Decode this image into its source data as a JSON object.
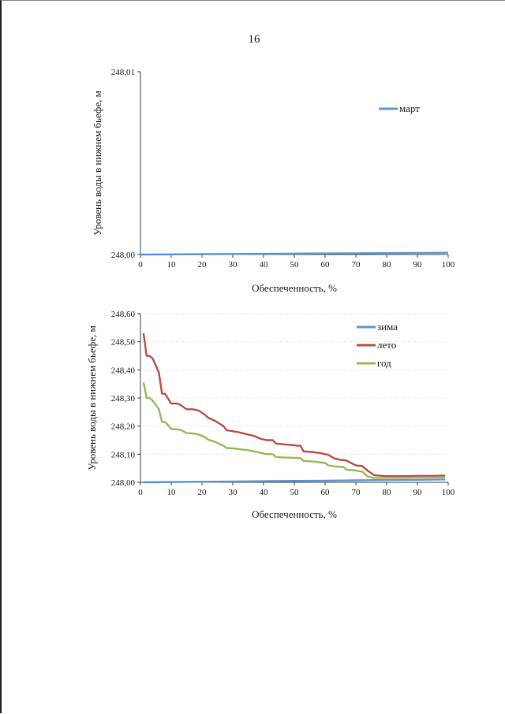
{
  "page": {
    "number": "16"
  },
  "chart_data": [
    {
      "type": "line",
      "title": "",
      "xlabel": "Обеспеченность, %",
      "ylabel": "Уровень воды в нижнем бьефе, м",
      "xlim": [
        0,
        100
      ],
      "ylim": [
        248.0,
        248.01
      ],
      "xticks": [
        0,
        10,
        20,
        30,
        40,
        50,
        60,
        70,
        80,
        90,
        100
      ],
      "yticks": [
        "248,00",
        "248,01"
      ],
      "yticks_values": [
        248.0,
        248.01
      ],
      "grid": false,
      "legend_position": "top-right",
      "series": [
        {
          "name": "март",
          "color": "#5b9bd5",
          "x": [
            0,
            10,
            20,
            30,
            40,
            50,
            60,
            70,
            80,
            90,
            100
          ],
          "values": [
            248.0,
            248.00001,
            248.00002,
            248.00003,
            248.00004,
            248.00005,
            248.00006,
            248.00007,
            248.00008,
            248.00009,
            248.0001
          ]
        }
      ]
    },
    {
      "type": "line",
      "title": "",
      "xlabel": "Обеспеченность, %",
      "ylabel": "Уровень воды в нижнем бьефе, м",
      "xlim": [
        0,
        100
      ],
      "ylim": [
        248.0,
        248.6
      ],
      "xticks": [
        0,
        10,
        20,
        30,
        40,
        50,
        60,
        70,
        80,
        90,
        100
      ],
      "yticks": [
        "248,00",
        "248,10",
        "248,20",
        "248,30",
        "248,40",
        "248,50",
        "248,60"
      ],
      "yticks_values": [
        248.0,
        248.1,
        248.2,
        248.3,
        248.4,
        248.5,
        248.6
      ],
      "grid": true,
      "legend_position": "top-right",
      "series": [
        {
          "name": "зима",
          "color": "#5b9bd5",
          "x": [
            1,
            10,
            20,
            30,
            40,
            50,
            60,
            70,
            80,
            90,
            99
          ],
          "values": [
            248.0,
            248.001,
            248.002,
            248.003,
            248.004,
            248.005,
            248.006,
            248.007,
            248.008,
            248.009,
            248.01
          ]
        },
        {
          "name": "лето",
          "color": "#c0504d",
          "x": [
            1,
            2,
            3,
            4,
            6,
            7,
            8,
            10,
            12,
            13,
            15,
            17,
            19,
            21,
            22,
            24,
            27,
            28,
            31,
            32,
            35,
            37,
            39,
            41,
            43,
            44,
            47,
            50,
            51,
            52,
            53,
            56,
            57,
            59,
            60,
            61,
            63,
            65,
            66,
            67,
            70,
            72,
            74,
            76,
            80,
            85,
            90,
            95,
            99
          ],
          "values": [
            248.53,
            248.45,
            248.45,
            248.44,
            248.39,
            248.315,
            248.315,
            248.28,
            248.28,
            248.275,
            248.26,
            248.26,
            248.255,
            248.24,
            248.23,
            248.22,
            248.2,
            248.185,
            248.18,
            248.178,
            248.17,
            248.165,
            248.155,
            248.15,
            248.15,
            248.138,
            248.135,
            248.132,
            248.13,
            248.13,
            248.11,
            248.108,
            248.106,
            248.103,
            248.1,
            248.098,
            248.085,
            248.08,
            248.079,
            248.077,
            248.06,
            248.058,
            248.04,
            248.025,
            248.022,
            248.022,
            248.023,
            248.023,
            248.024
          ]
        },
        {
          "name": "год",
          "color": "#9bbb59",
          "x": [
            1,
            2,
            3,
            4,
            6,
            7,
            8,
            10,
            12,
            13,
            15,
            17,
            19,
            21,
            22,
            24,
            27,
            28,
            31,
            32,
            35,
            37,
            39,
            41,
            43,
            44,
            47,
            50,
            51,
            52,
            53,
            56,
            57,
            59,
            60,
            61,
            63,
            65,
            66,
            67,
            70,
            72,
            74,
            76,
            80,
            85,
            90,
            95,
            99
          ],
          "values": [
            248.355,
            248.3,
            248.3,
            248.29,
            248.26,
            248.215,
            248.215,
            248.19,
            248.188,
            248.187,
            248.175,
            248.174,
            248.17,
            248.16,
            248.152,
            248.145,
            248.13,
            248.122,
            248.12,
            248.118,
            248.114,
            248.11,
            248.105,
            248.1,
            248.1,
            248.09,
            248.088,
            248.087,
            248.087,
            248.086,
            248.076,
            248.074,
            248.073,
            248.07,
            248.069,
            248.06,
            248.057,
            248.055,
            248.054,
            248.045,
            248.042,
            248.038,
            248.02,
            248.015,
            248.016,
            248.016,
            248.017,
            248.017,
            248.018
          ]
        }
      ]
    }
  ]
}
